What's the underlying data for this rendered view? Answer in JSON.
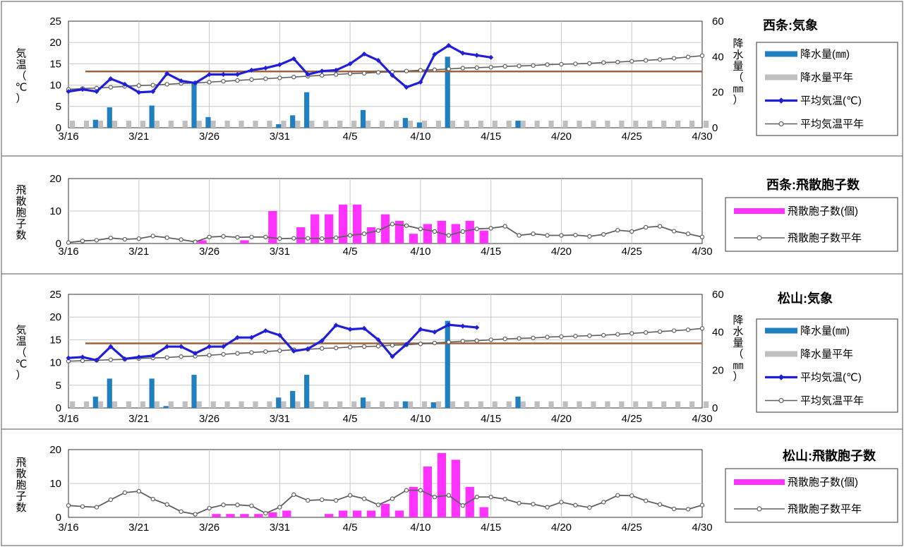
{
  "colors": {
    "precip": "#1f7fbf",
    "precip_normal": "#bfbfbf",
    "temp": "#1f1fd9",
    "temp_normal": "#606060",
    "pollen": "#ff33ff",
    "threshold": "#a0643c"
  },
  "x_ticks": [
    "3/16",
    "3/21",
    "3/26",
    "3/31",
    "4/5",
    "4/10",
    "4/15",
    "4/20",
    "4/25",
    "4/30"
  ],
  "chart_data": [
    {
      "id": "saijo-weather",
      "type": "bar+line",
      "title": "西条:気象",
      "ylabel_left": "気温（℃）",
      "ylabel_right": "降水量（㎜）",
      "ylim_left": [
        0,
        25
      ],
      "ylim_right": [
        0,
        60
      ],
      "yticks_left": [
        "0",
        "5",
        "10",
        "15",
        "20",
        "25"
      ],
      "yticks_right": [
        "0",
        "20",
        "40",
        "60"
      ],
      "legend": [
        "降水量(㎜)",
        "降水量平年",
        "平均気温(℃)",
        "平均気温平年"
      ],
      "threshold_temp": 13.2,
      "precip": [
        0,
        0,
        4.5,
        11.5,
        0,
        0,
        12.5,
        0,
        0,
        25.5,
        6,
        0,
        0,
        0,
        0,
        2,
        7,
        20,
        0,
        0,
        0,
        10,
        0,
        0,
        5.5,
        3,
        0,
        40,
        0,
        0,
        0,
        0,
        4,
        0,
        0,
        0,
        0,
        0,
        0,
        0,
        0,
        0,
        0,
        0,
        0,
        0
      ],
      "precip_normal": [
        4,
        4,
        4,
        4,
        4,
        4,
        4,
        4,
        4,
        4,
        4,
        4,
        4,
        4,
        4,
        4,
        4,
        4,
        4,
        4,
        4,
        4,
        4,
        4,
        4,
        4,
        4,
        4,
        4,
        4,
        4,
        4,
        4,
        4,
        4,
        4,
        4,
        4,
        4,
        4,
        4,
        4,
        4,
        4,
        4,
        4
      ],
      "temp": [
        8.5,
        9,
        8.5,
        11.5,
        10.2,
        8.3,
        8.5,
        12.7,
        11,
        10.5,
        12.5,
        12.5,
        12.5,
        13.5,
        14,
        14.8,
        16.2,
        12.5,
        13.3,
        13.5,
        15,
        17.3,
        15.8,
        12.3,
        9.5,
        10.7,
        17.2,
        19.3,
        17.5,
        17,
        16.5
      ],
      "temp_normal": [
        9,
        9.2,
        9.3,
        9.5,
        9.7,
        9.9,
        10,
        10.2,
        10.4,
        10.5,
        10.7,
        10.9,
        11.1,
        11.3,
        11.5,
        11.7,
        11.9,
        12.1,
        12.3,
        12.5,
        12.7,
        12.8,
        13,
        13.1,
        13.3,
        13.5,
        13.6,
        13.8,
        14,
        14.1,
        14.2,
        14.4,
        14.5,
        14.6,
        14.8,
        14.9,
        15,
        15.1,
        15.3,
        15.4,
        15.6,
        15.8,
        16,
        16.3,
        16.6,
        16.9
      ]
    },
    {
      "id": "saijo-pollen",
      "type": "bar+line",
      "title": "西条:飛散胞子数",
      "ylabel_left": "飛散胞子数",
      "ylim_left": [
        0,
        20
      ],
      "yticks_left": [
        "0",
        "10",
        "20"
      ],
      "legend": [
        "飛散胞子数(個)",
        "飛散胞子数平年"
      ],
      "pollen": [
        0,
        0,
        0,
        0,
        0,
        0,
        0,
        0,
        0,
        1,
        0,
        0,
        1,
        0,
        10,
        0,
        5,
        9,
        9,
        12,
        12,
        5,
        9,
        7,
        3,
        6,
        7,
        6,
        7,
        4,
        0,
        0,
        0,
        0,
        0,
        0,
        0,
        0,
        0,
        0,
        0,
        0,
        0,
        0,
        0,
        0
      ],
      "pollen_normal": [
        0.3,
        0.8,
        1,
        1.7,
        1.3,
        1.5,
        2.3,
        1.8,
        1.2,
        0.5,
        2,
        2.2,
        1.9,
        2,
        2,
        1.5,
        1.6,
        1.6,
        1.5,
        1.8,
        2.5,
        3,
        4,
        6,
        5.5,
        4.5,
        3.7,
        2.5,
        3.7,
        4.5,
        4.7,
        5.3,
        2.5,
        3,
        2.5,
        2.5,
        2.6,
        2.2,
        2.8,
        4.1,
        3.7,
        5,
        5.3,
        3.8,
        3,
        2
      ]
    },
    {
      "id": "matsuyama-weather",
      "type": "bar+line",
      "title": "松山:気象",
      "ylabel_left": "気温（℃）",
      "ylabel_right": "降水量（㎜）",
      "ylim_left": [
        0,
        25
      ],
      "ylim_right": [
        0,
        60
      ],
      "yticks_left": [
        "0",
        "5",
        "10",
        "15",
        "20",
        "25"
      ],
      "yticks_right": [
        "0",
        "20",
        "40",
        "60"
      ],
      "legend": [
        "降水量(㎜)",
        "降水量平年"
      ],
      "threshold_temp": 14.2,
      "precip": [
        0,
        0,
        6,
        15.5,
        0,
        0,
        15.5,
        1,
        0,
        17.5,
        0,
        0,
        0,
        0,
        0,
        5.5,
        9,
        17.5,
        0,
        0,
        0,
        5.5,
        0,
        0,
        3.5,
        0,
        3,
        46,
        0,
        0,
        0,
        0,
        6,
        0,
        0,
        0,
        0,
        0,
        0,
        0,
        0,
        0,
        0,
        0,
        0,
        0
      ],
      "precip_normal": [
        3.5,
        3.5,
        3.5,
        3.5,
        3.5,
        3.5,
        3.5,
        3.5,
        3.5,
        3.5,
        3.5,
        3.5,
        3.5,
        3.5,
        3.5,
        3.5,
        3.5,
        3.5,
        3.5,
        3.5,
        3.5,
        3.5,
        3.5,
        3.5,
        3.5,
        3.5,
        3.5,
        3.5,
        3.5,
        3.5,
        3.5,
        3.5,
        3.5,
        3.5,
        3.5,
        3.5,
        3.5,
        3.5,
        3.5,
        3.5,
        3.5,
        3.5,
        3.5,
        3.5,
        3.5,
        3.5
      ],
      "temp": [
        11,
        11.2,
        10.5,
        13.5,
        10.8,
        11.2,
        11.5,
        13.5,
        13.5,
        12,
        13.5,
        13.5,
        15.5,
        15.5,
        17,
        16,
        12.5,
        13,
        14.8,
        18.2,
        17.3,
        17.5,
        15,
        11.3,
        14,
        17.3,
        16.7,
        18.3,
        18,
        17.7
      ],
      "temp_normal": [
        10.3,
        10.4,
        10.5,
        10.6,
        10.7,
        10.9,
        11,
        11.1,
        11.3,
        11.4,
        11.6,
        11.8,
        12,
        12.2,
        12.4,
        12.6,
        12.8,
        12.9,
        13.1,
        13.2,
        13.4,
        13.5,
        13.6,
        13.8,
        13.9,
        14.1,
        14.3,
        14.5,
        14.7,
        14.8,
        15,
        15.2,
        15.3,
        15.4,
        15.6,
        15.7,
        15.8,
        15.9,
        16,
        16.2,
        16.4,
        16.6,
        16.8,
        17,
        17.2,
        17.5
      ]
    },
    {
      "id": "matsuyama-pollen",
      "type": "bar+line",
      "title": "松山:飛散胞子数",
      "ylabel_left": "飛散胞子数",
      "ylim_left": [
        0,
        20
      ],
      "yticks_left": [
        "0",
        "10",
        "20"
      ],
      "legend": [
        "飛散胞子数(個)",
        "飛散胞子数平年"
      ],
      "pollen": [
        0,
        0,
        0,
        0,
        0,
        0,
        0,
        0,
        0,
        0,
        1,
        1,
        1,
        1,
        1.5,
        2,
        0,
        0,
        1,
        2,
        2,
        2,
        4,
        2,
        9,
        15,
        19,
        17,
        9,
        3,
        0,
        0,
        0,
        0,
        0,
        0,
        0,
        0,
        0,
        0,
        0,
        0,
        0,
        0,
        0,
        0
      ],
      "pollen_normal": [
        3.5,
        3.2,
        3,
        5.2,
        7.3,
        7.7,
        5.4,
        3.8,
        1.7,
        0.9,
        2.7,
        3.7,
        3.7,
        3.4,
        1.2,
        3,
        6.7,
        5,
        5.2,
        5,
        6.5,
        5.5,
        3.7,
        5.5,
        8,
        8,
        6,
        6.5,
        3.5,
        6,
        6,
        5.4,
        4.2,
        3.9,
        3,
        4.5,
        3.6,
        2.9,
        4.5,
        6.5,
        6.4,
        4.9,
        3.8,
        2.5,
        2.4,
        3.6
      ]
    }
  ]
}
